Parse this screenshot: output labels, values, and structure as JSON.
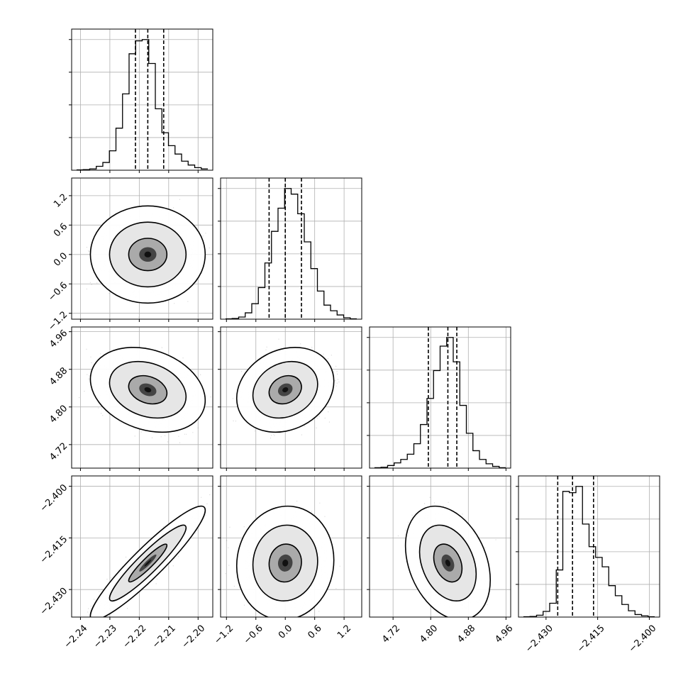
{
  "chart_data": {
    "type": "corner",
    "grid": true,
    "parameters": [
      {
        "range": [
          -2.243,
          -2.195
        ],
        "ticks": [
          -2.24,
          -2.23,
          -2.22,
          -2.21,
          -2.2
        ],
        "tick_labels": [
          "−2.24",
          "−2.23",
          "−2.22",
          "−2.21",
          "−2.20"
        ],
        "quantiles": [
          -2.2213,
          -2.2171,
          -2.2117
        ],
        "hist_counts": [
          0.5,
          1,
          2,
          6,
          12,
          30,
          65,
          118,
          180,
          200,
          202,
          165,
          95,
          58,
          38,
          25,
          14,
          8,
          4,
          2
        ]
      },
      {
        "range": [
          -1.32,
          1.56
        ],
        "ticks": [
          -1.2,
          -0.6,
          0.0,
          0.6,
          1.2
        ],
        "tick_labels": [
          "−1.2",
          "−0.6",
          "0.0",
          "0.6",
          "1.2"
        ],
        "quantiles": [
          -0.33,
          0.0,
          0.33
        ],
        "hist_counts": [
          0.5,
          1,
          3,
          9,
          22,
          45,
          80,
          125,
          158,
          186,
          178,
          150,
          110,
          72,
          40,
          20,
          12,
          6,
          2,
          0.5
        ]
      },
      {
        "range": [
          4.67,
          4.97
        ],
        "ticks": [
          4.72,
          4.8,
          4.88,
          4.96
        ],
        "tick_labels": [
          "4.72",
          "4.80",
          "4.88",
          "4.96"
        ],
        "quantiles": [
          4.795,
          4.8365,
          4.8555
        ],
        "hist_counts": [
          0.5,
          1,
          3,
          6,
          10,
          16,
          28,
          50,
          80,
          112,
          140,
          150,
          122,
          72,
          40,
          20,
          10,
          5,
          2,
          0.5
        ]
      },
      {
        "range": [
          -2.438,
          -2.397
        ],
        "ticks": [
          -2.43,
          -2.415,
          -2.4
        ],
        "tick_labels": [
          "−2.430",
          "−2.415",
          "−2.400"
        ],
        "quantiles": [
          -2.4266,
          -2.4223,
          -2.4162
        ],
        "hist_counts": [
          0.5,
          1,
          3,
          9,
          22,
          75,
          200,
          198,
          208,
          148,
          112,
          95,
          80,
          50,
          34,
          20,
          10,
          4,
          2,
          0.5
        ]
      }
    ],
    "pairs": [
      {
        "x": 0,
        "y": 1,
        "mean": [
          -2.2171,
          0.0
        ],
        "sd": [
          0.0065,
          0.33
        ],
        "rho": 0.0
      },
      {
        "x": 0,
        "y": 2,
        "mean": [
          -2.2171,
          4.8365
        ],
        "sd": [
          0.0065,
          0.03
        ],
        "rho": -0.25
      },
      {
        "x": 1,
        "y": 2,
        "mean": [
          0.0,
          4.8365
        ],
        "sd": [
          0.33,
          0.03
        ],
        "rho": 0.2
      },
      {
        "x": 0,
        "y": 3,
        "mean": [
          -2.2171,
          -2.4223
        ],
        "sd": [
          0.0065,
          0.0055
        ],
        "rho": 0.93
      },
      {
        "x": 1,
        "y": 3,
        "mean": [
          0.0,
          -2.4223
        ],
        "sd": [
          0.33,
          0.0055
        ],
        "rho": 0.05
      },
      {
        "x": 2,
        "y": 3,
        "mean": [
          4.8365,
          -2.4223
        ],
        "sd": [
          0.03,
          0.0055
        ],
        "rho": -0.3
      }
    ]
  }
}
